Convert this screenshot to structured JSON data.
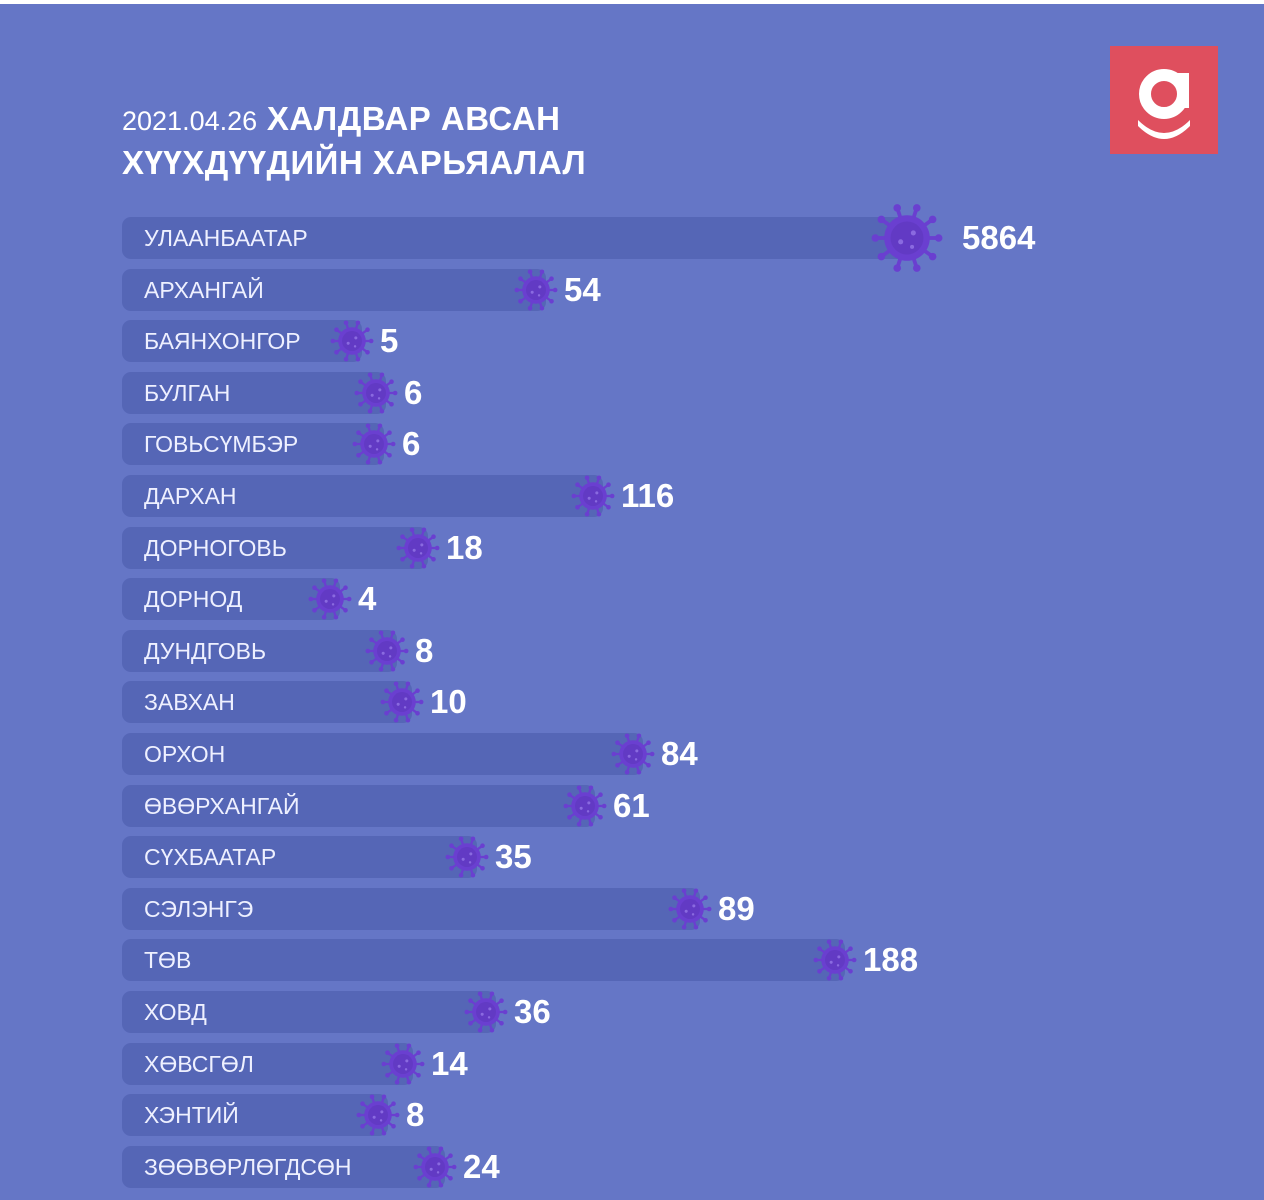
{
  "header": {
    "date": "2021.04.26",
    "title_line1": "ХАЛДВАР АВСАН",
    "title_line2": "ХҮҮХДҮҮДИЙН ХАРЬЯАЛАЛ"
  },
  "logo": {
    "letter": "g",
    "color": "#df4f5e"
  },
  "colors": {
    "background": "#6576c6",
    "bar": "#5566b6",
    "virus": "#6a3fd0"
  },
  "chart_data": {
    "type": "bar",
    "orientation": "horizontal",
    "title": "2021.04.26 ХАЛДВАР АВСАН ХҮҮХДҮҮДИЙН ХАРЬЯАЛАЛ",
    "categories": [
      "УЛААНБААТАР",
      "АРХАНГАЙ",
      "БАЯНХОНГОР",
      "БУЛГАН",
      "ГОВЬСҮМБЭР",
      "ДАРХАН",
      "ДОРНОГОВЬ",
      "ДОРНОД",
      "ДУНДГОВЬ",
      "ЗАВХАН",
      "ОРХОН",
      "ӨВӨРХАНГАЙ",
      "СҮХБААТАР",
      "СЭЛЭНГЭ",
      "ТӨВ",
      "ХОВД",
      "ХӨВСГӨЛ",
      "ХЭНТИЙ",
      "ЗӨӨВӨРЛӨГДСӨН"
    ],
    "values": [
      5864,
      54,
      5,
      6,
      6,
      116,
      18,
      4,
      8,
      10,
      84,
      61,
      35,
      89,
      188,
      36,
      14,
      8,
      24
    ],
    "value_labels": [
      "5864",
      "54",
      "5",
      "6",
      "6",
      "116",
      "18",
      "4",
      "8",
      "10",
      "84",
      "61",
      "35",
      "89",
      "188",
      "36",
      "14",
      "8",
      "24"
    ],
    "xlabel": "",
    "ylabel": "",
    "grid": false
  }
}
